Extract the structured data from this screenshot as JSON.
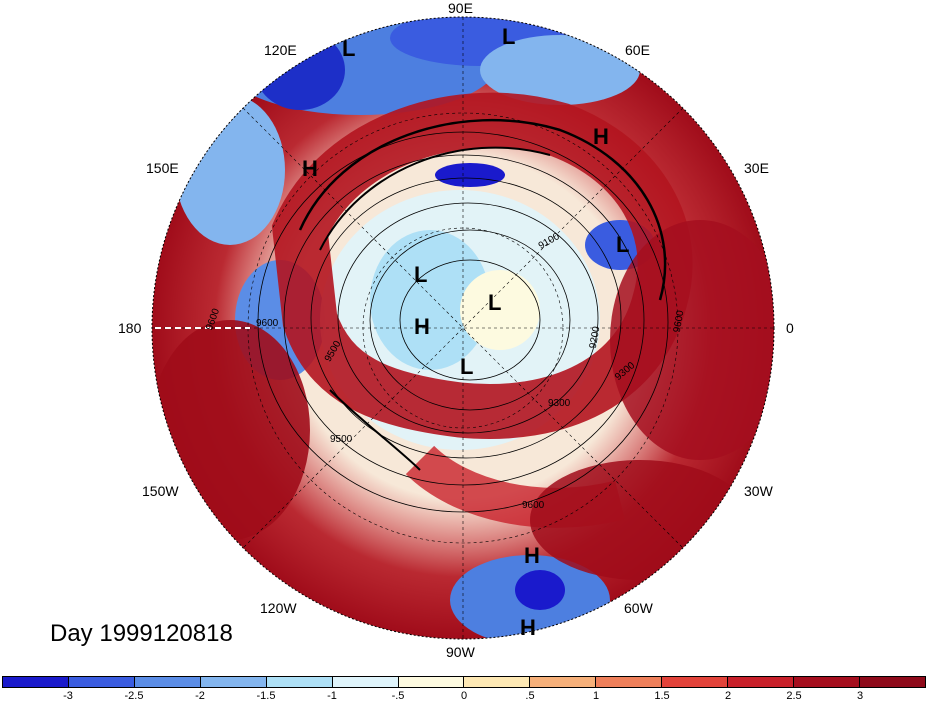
{
  "longitude_labels": {
    "lon_90E": "90E",
    "lon_120E": "120E",
    "lon_60E": "60E",
    "lon_150E": "150E",
    "lon_30E": "30E",
    "lon_180": "180",
    "lon_0": "0",
    "lon_150W": "150W",
    "lon_30W": "30W",
    "lon_120W": "120W",
    "lon_60W": "60W",
    "lon_90W": "90W"
  },
  "pressure_markers": [
    "L",
    "L",
    "H",
    "H",
    "L",
    "L",
    "L",
    "H",
    "L",
    "H",
    "H"
  ],
  "contour_labels": [
    "9600",
    "9600",
    "9500",
    "9500",
    "9300",
    "9200",
    "9600",
    "9600",
    "9300",
    "9100"
  ],
  "day_label": "Day 1999120818",
  "colorbar": {
    "colors": [
      "#1a1acc",
      "#3a5ce0",
      "#5b8de6",
      "#83b5ee",
      "#aee0f6",
      "#dff4fb",
      "#fdfae0",
      "#fde8b4",
      "#f6b07a",
      "#ee7f5a",
      "#e2433a",
      "#c8202a",
      "#a50e1e",
      "#8e0a1a"
    ],
    "ticks": [
      "-3",
      "-2.5",
      "-2",
      "-1.5",
      "-1",
      "-.5",
      "0",
      ".5",
      "1",
      "1.5",
      "2",
      "2.5",
      "3"
    ]
  }
}
